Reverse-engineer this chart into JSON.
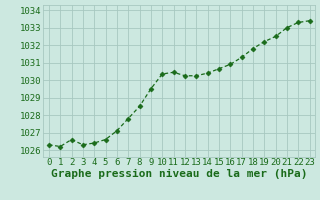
{
  "x": [
    0,
    1,
    2,
    3,
    4,
    5,
    6,
    7,
    8,
    9,
    10,
    11,
    12,
    13,
    14,
    15,
    16,
    17,
    18,
    19,
    20,
    21,
    22,
    23
  ],
  "y": [
    1026.3,
    1026.2,
    1026.6,
    1026.3,
    1026.4,
    1026.6,
    1027.1,
    1027.8,
    1028.5,
    1029.5,
    1030.35,
    1030.45,
    1030.25,
    1030.25,
    1030.4,
    1030.65,
    1030.9,
    1031.3,
    1031.8,
    1032.2,
    1032.5,
    1033.0,
    1033.3,
    1033.4
  ],
  "line_color": "#1a6b1a",
  "marker": "D",
  "marker_size": 2.5,
  "bg_color": "#cce8e0",
  "grid_color": "#a8c8c0",
  "title": "Graphe pression niveau de la mer (hPa)",
  "xlabel_ticks": [
    "0",
    "1",
    "2",
    "3",
    "4",
    "5",
    "6",
    "7",
    "8",
    "9",
    "10",
    "11",
    "12",
    "13",
    "14",
    "15",
    "16",
    "17",
    "18",
    "19",
    "20",
    "21",
    "22",
    "23"
  ],
  "ytick_labels": [
    "1026",
    "1027",
    "1028",
    "1029",
    "1030",
    "1031",
    "1032",
    "1033",
    "1034"
  ],
  "ytick_values": [
    1026,
    1027,
    1028,
    1029,
    1030,
    1031,
    1032,
    1033,
    1034
  ],
  "ylim": [
    1025.6,
    1034.3
  ],
  "xlim": [
    -0.5,
    23.5
  ],
  "title_fontsize": 8,
  "tick_fontsize": 6.5
}
